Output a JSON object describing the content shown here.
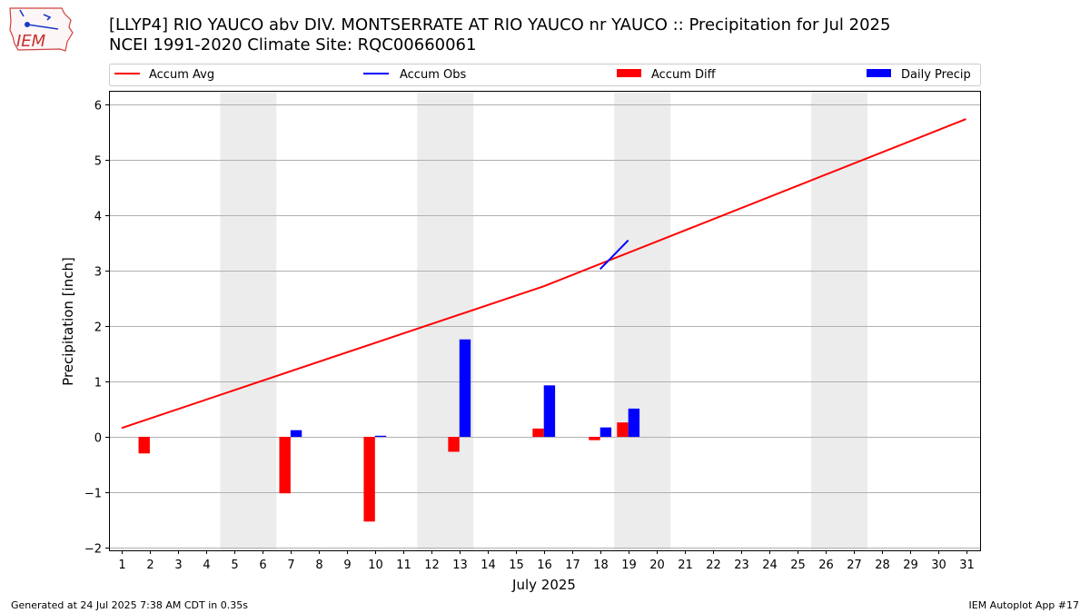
{
  "header": {
    "title_line1": "[LLYP4] RIO YAUCO abv DIV. MONTSERRATE  AT RIO YAUCO nr YAUCO :: Precipitation for Jul 2025",
    "title_line2": "NCEI 1991-2020 Climate Site: RQC00660061",
    "logo_text": "IEM"
  },
  "footer": {
    "generated": "Generated at 24 Jul 2025 7:38 AM CDT in 0.35s",
    "app": "IEM Autoplot App #17"
  },
  "chart_data": {
    "type": "bar",
    "xlabel": "July 2025",
    "ylabel": "Precipitation [inch]",
    "ylim": [
      -2.05,
      6.25
    ],
    "xlim": [
      0.55,
      31.5
    ],
    "yticks": [
      -2,
      -1,
      0,
      1,
      2,
      3,
      4,
      5,
      6
    ],
    "ytick_labels": [
      "−2",
      "−1",
      "0",
      "1",
      "2",
      "3",
      "4",
      "5",
      "6"
    ],
    "xticks": [
      1,
      2,
      3,
      4,
      5,
      6,
      7,
      8,
      9,
      10,
      11,
      12,
      13,
      14,
      15,
      16,
      17,
      18,
      19,
      20,
      21,
      22,
      23,
      24,
      25,
      26,
      27,
      28,
      29,
      30,
      31
    ],
    "grid": "horizontal",
    "legend_position": "top",
    "weekend_shading": [
      [
        4.5,
        6.5
      ],
      [
        11.5,
        13.5
      ],
      [
        18.5,
        20.5
      ],
      [
        25.5,
        27.5
      ]
    ],
    "colors": {
      "avg": "#ff0000",
      "obs": "#0000ff",
      "diff": "#ff0000",
      "daily": "#0000ff",
      "shade": "#ececec",
      "grid": "#b0b0b0"
    },
    "legend": [
      "Accum Avg",
      "Accum Obs",
      "Accum Diff",
      "Daily Precip"
    ],
    "accum_avg": {
      "x": [
        1,
        16,
        31
      ],
      "y": [
        0.16,
        2.72,
        5.74
      ]
    },
    "accum_obs": {
      "x": [
        18,
        19
      ],
      "y": [
        3.03,
        3.55
      ]
    },
    "accum_diff": {
      "x": [
        2,
        7,
        10,
        13,
        16,
        18,
        19
      ],
      "y": [
        -0.3,
        -1.02,
        -1.53,
        -0.27,
        0.15,
        -0.06,
        0.26
      ]
    },
    "daily_precip": {
      "x": [
        7,
        10,
        13,
        16,
        18,
        19
      ],
      "y": [
        0.12,
        0.02,
        1.76,
        0.93,
        0.17,
        0.51
      ]
    }
  }
}
